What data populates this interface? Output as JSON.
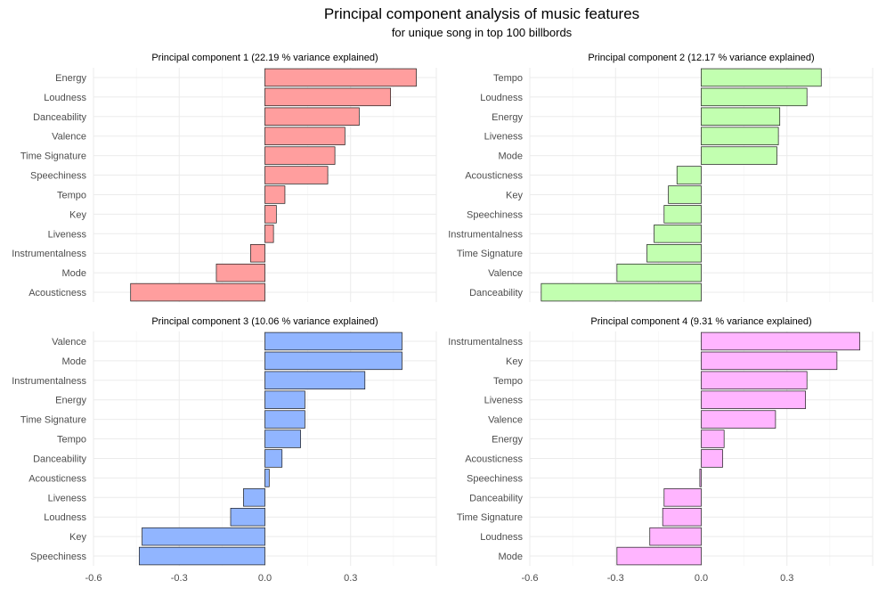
{
  "chart_data": {
    "type": "bar",
    "orientation": "horizontal",
    "title": "Principal component analysis of music features",
    "subtitle": "for unique song in top 100 billbords",
    "xlim": [
      -0.6,
      0.6
    ],
    "x_ticks": [
      -0.6,
      -0.3,
      0.0,
      0.3
    ],
    "x_tick_labels": [
      "-0.6",
      "-0.3",
      "0.0",
      "0.3"
    ],
    "grid": true,
    "panels": [
      {
        "title": "Principal component 1 (22.19 % variance explained)",
        "color": "#FF9E9E",
        "categories": [
          "Energy",
          "Loudness",
          "Danceability",
          "Valence",
          "Time Signature",
          "Speechiness",
          "Tempo",
          "Key",
          "Liveness",
          "Instrumentalness",
          "Mode",
          "Acousticness"
        ],
        "values": [
          0.53,
          0.44,
          0.33,
          0.28,
          0.245,
          0.22,
          0.07,
          0.04,
          0.03,
          -0.05,
          -0.17,
          -0.47
        ]
      },
      {
        "title": "Principal component 2 (12.17 % variance explained)",
        "color": "#C2FFB0",
        "categories": [
          "Tempo",
          "Loudness",
          "Energy",
          "Liveness",
          "Mode",
          "Acousticness",
          "Key",
          "Speechiness",
          "Instrumentalness",
          "Time Signature",
          "Valence",
          "Danceability"
        ],
        "values": [
          0.42,
          0.37,
          0.275,
          0.27,
          0.265,
          -0.085,
          -0.115,
          -0.13,
          -0.165,
          -0.19,
          -0.295,
          -0.56
        ]
      },
      {
        "title": "Principal component 3 (10.06 % variance explained)",
        "color": "#91B5FF",
        "categories": [
          "Valence",
          "Mode",
          "Instrumentalness",
          "Energy",
          "Time Signature",
          "Tempo",
          "Danceability",
          "Acousticness",
          "Liveness",
          "Loudness",
          "Key",
          "Speechiness"
        ],
        "values": [
          0.48,
          0.48,
          0.35,
          0.14,
          0.14,
          0.125,
          0.06,
          0.015,
          -0.075,
          -0.12,
          -0.43,
          -0.44
        ]
      },
      {
        "title": "Principal component 4 (9.31 % variance explained)",
        "color": "#FFB5FF",
        "categories": [
          "Instrumentalness",
          "Key",
          "Tempo",
          "Liveness",
          "Valence",
          "Energy",
          "Acousticness",
          "Speechiness",
          "Danceability",
          "Time Signature",
          "Loudness",
          "Mode"
        ],
        "values": [
          0.555,
          0.475,
          0.37,
          0.365,
          0.26,
          0.08,
          0.075,
          -0.005,
          -0.13,
          -0.135,
          -0.18,
          -0.295
        ]
      }
    ]
  }
}
